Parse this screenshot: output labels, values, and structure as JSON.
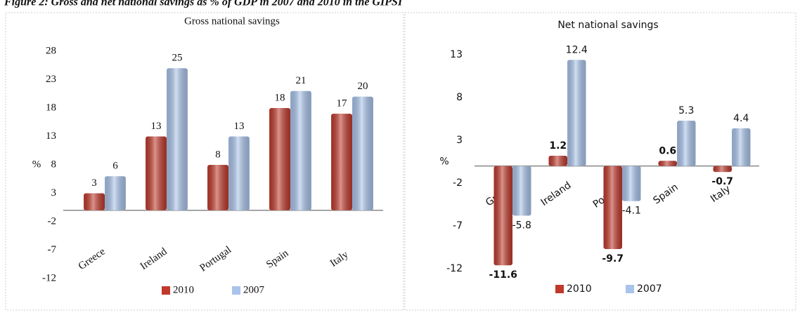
{
  "caption": "Figure 2: Gross and net national savings as % of GDP in 2007 and 2010 in the GIPSI",
  "chart_data": [
    {
      "type": "bar",
      "title": "Gross national savings",
      "y_label": "%",
      "categories": [
        "Greece",
        "Ireland",
        "Portugal",
        "Spain",
        "Italy"
      ],
      "series": [
        {
          "name": "2010",
          "color": "#c0392b",
          "values": [
            3,
            13,
            8,
            18,
            17
          ]
        },
        {
          "name": "2007",
          "color": "#a9c4eb",
          "values": [
            6,
            25,
            13,
            21,
            20
          ]
        }
      ],
      "ylim": [
        -12,
        28
      ],
      "yticks": [
        -12,
        -7,
        -2,
        3,
        8,
        13,
        18,
        23,
        28
      ],
      "grid": true
    },
    {
      "type": "bar",
      "title": "Net national savings",
      "y_label": "%",
      "categories": [
        "Greece",
        "Ireland",
        "Portugal",
        "Spain",
        "Italy"
      ],
      "series": [
        {
          "name": "2010",
          "color": "#c0392b",
          "values": [
            -11.6,
            1.2,
            -9.7,
            0.6,
            -0.7
          ]
        },
        {
          "name": "2007",
          "color": "#a9c4eb",
          "values": [
            -5.8,
            12.4,
            -4.1,
            5.3,
            4.4
          ]
        }
      ],
      "ylim": [
        -12,
        13
      ],
      "yticks": [
        -12,
        -7,
        -2,
        3,
        8,
        13
      ],
      "grid": true
    }
  ]
}
